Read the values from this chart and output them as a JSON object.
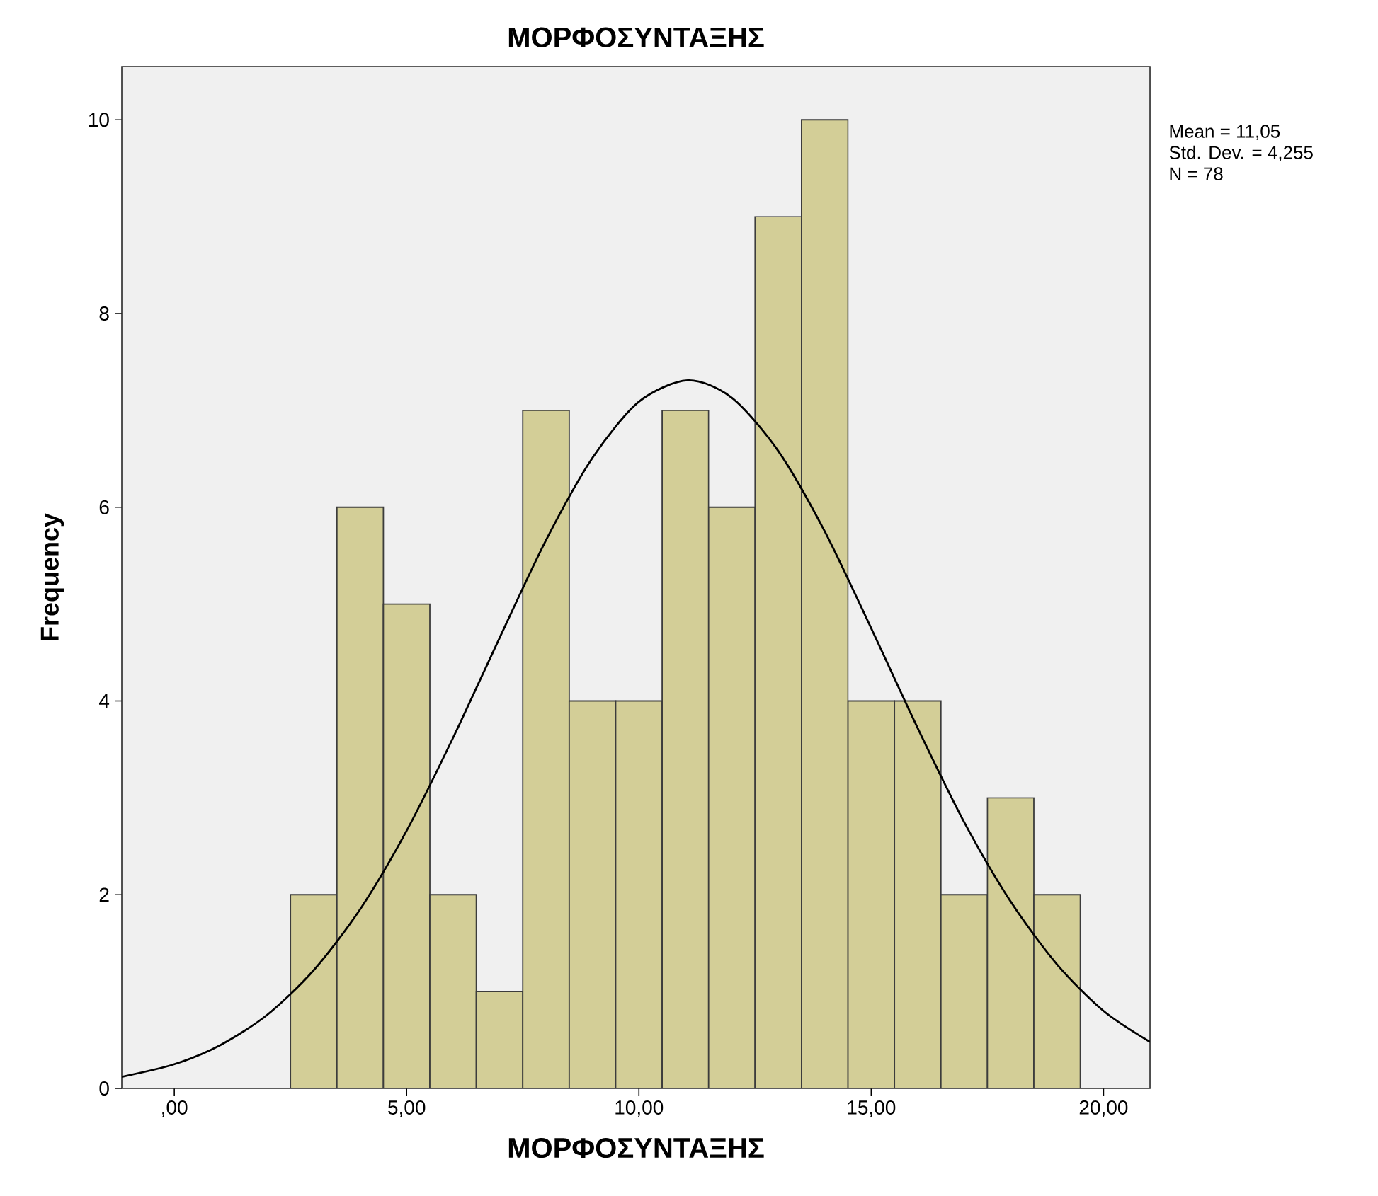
{
  "chart_data": {
    "type": "histogram",
    "title": "ΜΟΡΦΟΣΥΝΤΑΞΗΣ",
    "xlabel": "ΜΟΡΦΟΣΥΝΤΑΞΗΣ",
    "ylabel": "Frequency",
    "annotations": [
      "Mean = 11,05",
      "Std. Dev. = 4,255",
      "N = 78"
    ],
    "bins": [
      2.5,
      3.5,
      4.5,
      5.5,
      6.5,
      7.5,
      8.5,
      9.5,
      10.5,
      11.5,
      12.5,
      13.5,
      14.5,
      15.5,
      16.5,
      17.5,
      18.5,
      19.5
    ],
    "values": [
      2,
      6,
      5,
      2,
      1,
      7,
      4,
      4,
      7,
      6,
      9,
      10,
      4,
      4,
      2,
      3,
      2
    ],
    "color": "#d3ce97",
    "series": [
      {
        "type": "line",
        "color": "#000000",
        "x": [
          -1.13,
          0,
          1,
          2,
          3,
          4,
          5,
          6,
          7,
          8,
          9,
          10,
          11.05,
          12,
          13,
          14,
          15,
          16,
          17,
          18,
          19,
          20,
          21
        ],
        "values": [
          0.12,
          0.25,
          0.45,
          0.76,
          1.22,
          1.85,
          2.66,
          3.62,
          4.65,
          5.66,
          6.51,
          7.09,
          7.31,
          7.13,
          6.58,
          5.75,
          4.75,
          3.72,
          2.75,
          1.93,
          1.28,
          0.8,
          0.48
        ]
      }
    ],
    "xlim": [
      -1.13,
      21
    ],
    "ylim": [
      0,
      10.55
    ],
    "xticks": [
      {
        "value": 0,
        "label": ",00"
      },
      {
        "value": 5,
        "label": "5,00"
      },
      {
        "value": 10,
        "label": "10,00"
      },
      {
        "value": 15,
        "label": "15,00"
      },
      {
        "value": 20,
        "label": "20,00"
      }
    ],
    "yticks": [
      0,
      2,
      4,
      6,
      8,
      10
    ]
  }
}
